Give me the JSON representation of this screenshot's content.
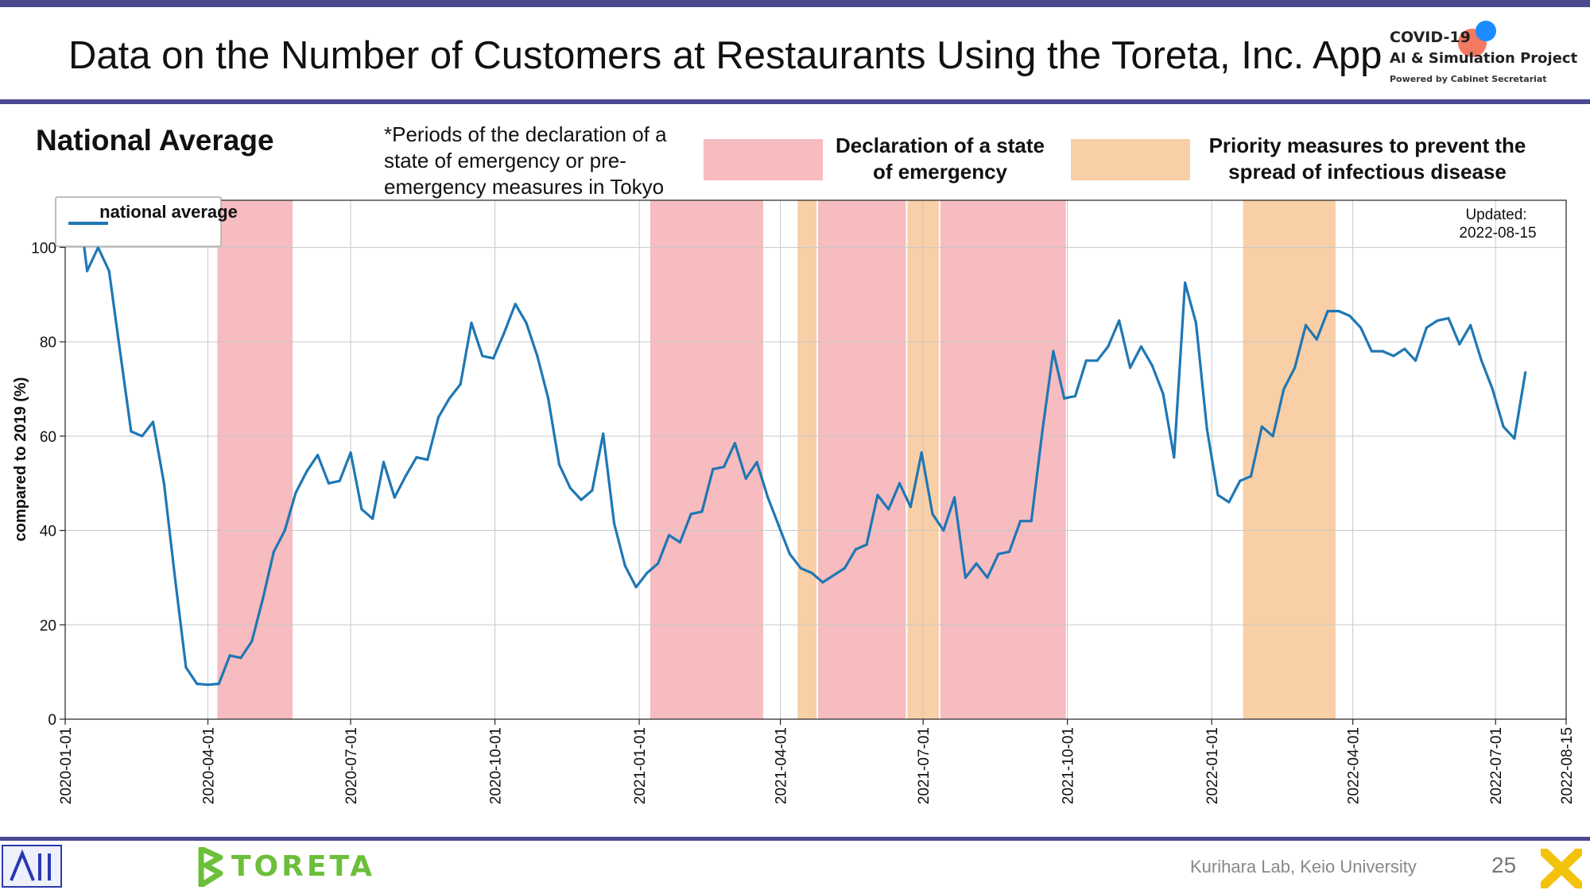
{
  "slide": {
    "title": "Data on the Number of Customers at Restaurants Using the Toreta, Inc. App",
    "subtitle": "National Average",
    "periods_note": "*Periods of the declaration of a state of emergency or pre-emergency measures in Tokyo",
    "legend_emergency": "Declaration of a state of emergency",
    "legend_priority": "Priority measures to prevent the spread of infectious disease",
    "footer": "Kurihara Lab, Keio University",
    "page_number": "25",
    "logo_line1": "COVID-19",
    "logo_line2": "AI & Simulation Project",
    "logo_line3": "Powered by Cabinet Secretariat",
    "toreta_logo": "TORETA"
  },
  "colors": {
    "bar": "#4b4a8f",
    "line": "#1f77b4",
    "emergency": "#f6bcbf",
    "priority": "#f8cfa6",
    "toreta_green": "#6cbf3a",
    "x_logo": "#f3c20c"
  },
  "chart_data": {
    "type": "line",
    "ylabel": "compared to 2019 (%)",
    "ylim": [
      0,
      110
    ],
    "yticks": [
      0,
      20,
      40,
      60,
      80,
      100
    ],
    "xlim": [
      "2020-01-01",
      "2022-08-15"
    ],
    "xticks": [
      "2020-01-01",
      "2020-04-01",
      "2020-07-01",
      "2020-10-01",
      "2021-01-01",
      "2021-04-01",
      "2021-07-01",
      "2021-10-01",
      "2022-01-01",
      "2022-04-01",
      "2022-07-01",
      "2022-08-15"
    ],
    "grid": true,
    "legend": "top-left",
    "legend_label": "national average",
    "updated_label": "Updated:",
    "updated_date": "2022-08-15",
    "emergency_periods": [
      [
        "2020-04-07",
        "2020-05-25"
      ],
      [
        "2021-01-08",
        "2021-03-21"
      ],
      [
        "2021-04-25",
        "2021-06-20"
      ],
      [
        "2021-07-12",
        "2021-09-30"
      ]
    ],
    "priority_periods": [
      [
        "2021-04-12",
        "2021-04-24"
      ],
      [
        "2021-06-21",
        "2021-07-11"
      ],
      [
        "2022-01-21",
        "2022-03-21"
      ]
    ],
    "series": [
      {
        "name": "national average",
        "points": [
          [
            "2020-01-08",
            114
          ],
          [
            "2020-01-15",
            95
          ],
          [
            "2020-01-22",
            100
          ],
          [
            "2020-01-29",
            95
          ],
          [
            "2020-02-05",
            78
          ],
          [
            "2020-02-12",
            61
          ],
          [
            "2020-02-19",
            60
          ],
          [
            "2020-02-26",
            63
          ],
          [
            "2020-03-04",
            50
          ],
          [
            "2020-03-11",
            30
          ],
          [
            "2020-03-18",
            11
          ],
          [
            "2020-03-25",
            7.5
          ],
          [
            "2020-04-01",
            7.3
          ],
          [
            "2020-04-08",
            7.5
          ],
          [
            "2020-04-15",
            13.5
          ],
          [
            "2020-04-22",
            13
          ],
          [
            "2020-04-29",
            16.5
          ],
          [
            "2020-05-06",
            25.5
          ],
          [
            "2020-05-13",
            35.5
          ],
          [
            "2020-05-20",
            40
          ],
          [
            "2020-05-27",
            48
          ],
          [
            "2020-06-03",
            52.5
          ],
          [
            "2020-06-10",
            56
          ],
          [
            "2020-06-17",
            50
          ],
          [
            "2020-06-24",
            50.5
          ],
          [
            "2020-07-01",
            56.5
          ],
          [
            "2020-07-08",
            44.5
          ],
          [
            "2020-07-15",
            42.5
          ],
          [
            "2020-07-22",
            54.5
          ],
          [
            "2020-07-29",
            47
          ],
          [
            "2020-08-05",
            51.5
          ],
          [
            "2020-08-12",
            55.5
          ],
          [
            "2020-08-19",
            55
          ],
          [
            "2020-08-26",
            64
          ],
          [
            "2020-09-02",
            68
          ],
          [
            "2020-09-09",
            71
          ],
          [
            "2020-09-16",
            84
          ],
          [
            "2020-09-23",
            77
          ],
          [
            "2020-09-30",
            76.5
          ],
          [
            "2020-10-07",
            82
          ],
          [
            "2020-10-14",
            88
          ],
          [
            "2020-10-21",
            84
          ],
          [
            "2020-10-28",
            77
          ],
          [
            "2020-11-04",
            68
          ],
          [
            "2020-11-11",
            54
          ],
          [
            "2020-11-18",
            49
          ],
          [
            "2020-11-25",
            46.5
          ],
          [
            "2020-12-02",
            48.5
          ],
          [
            "2020-12-09",
            60.5
          ],
          [
            "2020-12-16",
            41.5
          ],
          [
            "2020-12-23",
            32.5
          ],
          [
            "2020-12-30",
            28
          ],
          [
            "2021-01-06",
            31
          ],
          [
            "2021-01-13",
            33
          ],
          [
            "2021-01-20",
            39
          ],
          [
            "2021-01-27",
            37.5
          ],
          [
            "2021-02-03",
            43.5
          ],
          [
            "2021-02-10",
            44
          ],
          [
            "2021-02-17",
            53
          ],
          [
            "2021-02-24",
            53.5
          ],
          [
            "2021-03-03",
            58.5
          ],
          [
            "2021-03-10",
            51
          ],
          [
            "2021-03-17",
            54.5
          ],
          [
            "2021-03-24",
            47
          ],
          [
            "2021-03-31",
            41
          ],
          [
            "2021-04-07",
            35
          ],
          [
            "2021-04-14",
            32
          ],
          [
            "2021-04-21",
            31
          ],
          [
            "2021-04-28",
            29
          ],
          [
            "2021-05-05",
            30.5
          ],
          [
            "2021-05-12",
            32
          ],
          [
            "2021-05-19",
            36
          ],
          [
            "2021-05-26",
            37
          ],
          [
            "2021-06-02",
            47.5
          ],
          [
            "2021-06-09",
            44.5
          ],
          [
            "2021-06-16",
            50
          ],
          [
            "2021-06-23",
            45
          ],
          [
            "2021-06-30",
            56.5
          ],
          [
            "2021-07-07",
            43.5
          ],
          [
            "2021-07-14",
            40
          ],
          [
            "2021-07-21",
            47
          ],
          [
            "2021-07-28",
            30
          ],
          [
            "2021-08-04",
            33
          ],
          [
            "2021-08-11",
            30
          ],
          [
            "2021-08-18",
            35
          ],
          [
            "2021-08-25",
            35.5
          ],
          [
            "2021-09-01",
            42
          ],
          [
            "2021-09-08",
            42
          ],
          [
            "2021-09-15",
            61
          ],
          [
            "2021-09-22",
            78
          ],
          [
            "2021-09-29",
            68
          ],
          [
            "2021-10-06",
            68.5
          ],
          [
            "2021-10-13",
            76
          ],
          [
            "2021-10-20",
            76
          ],
          [
            "2021-10-27",
            79
          ],
          [
            "2021-11-03",
            84.5
          ],
          [
            "2021-11-10",
            74.5
          ],
          [
            "2021-11-17",
            79
          ],
          [
            "2021-11-24",
            75
          ],
          [
            "2021-12-01",
            69
          ],
          [
            "2021-12-08",
            55.5
          ],
          [
            "2021-12-15",
            92.5
          ],
          [
            "2021-12-22",
            84
          ],
          [
            "2021-12-29",
            61.5
          ],
          [
            "2022-01-05",
            47.5
          ],
          [
            "2022-01-12",
            46
          ],
          [
            "2022-01-19",
            50.5
          ],
          [
            "2022-01-26",
            51.5
          ],
          [
            "2022-02-02",
            62
          ],
          [
            "2022-02-09",
            60
          ],
          [
            "2022-02-16",
            70
          ],
          [
            "2022-02-23",
            74.5
          ],
          [
            "2022-03-02",
            83.5
          ],
          [
            "2022-03-09",
            80.5
          ],
          [
            "2022-03-16",
            86.5
          ],
          [
            "2022-03-23",
            86.5
          ],
          [
            "2022-03-30",
            85.5
          ],
          [
            "2022-04-06",
            83
          ],
          [
            "2022-04-13",
            78
          ],
          [
            "2022-04-20",
            78
          ],
          [
            "2022-04-27",
            77
          ],
          [
            "2022-05-04",
            78.5
          ],
          [
            "2022-05-11",
            76
          ],
          [
            "2022-05-18",
            83
          ],
          [
            "2022-05-25",
            84.5
          ],
          [
            "2022-06-01",
            85
          ],
          [
            "2022-06-08",
            79.5
          ],
          [
            "2022-06-15",
            83.5
          ],
          [
            "2022-06-22",
            76
          ],
          [
            "2022-06-29",
            70
          ],
          [
            "2022-07-06",
            62
          ],
          [
            "2022-07-13",
            59.5
          ],
          [
            "2022-07-20",
            73.5
          ]
        ]
      }
    ]
  }
}
